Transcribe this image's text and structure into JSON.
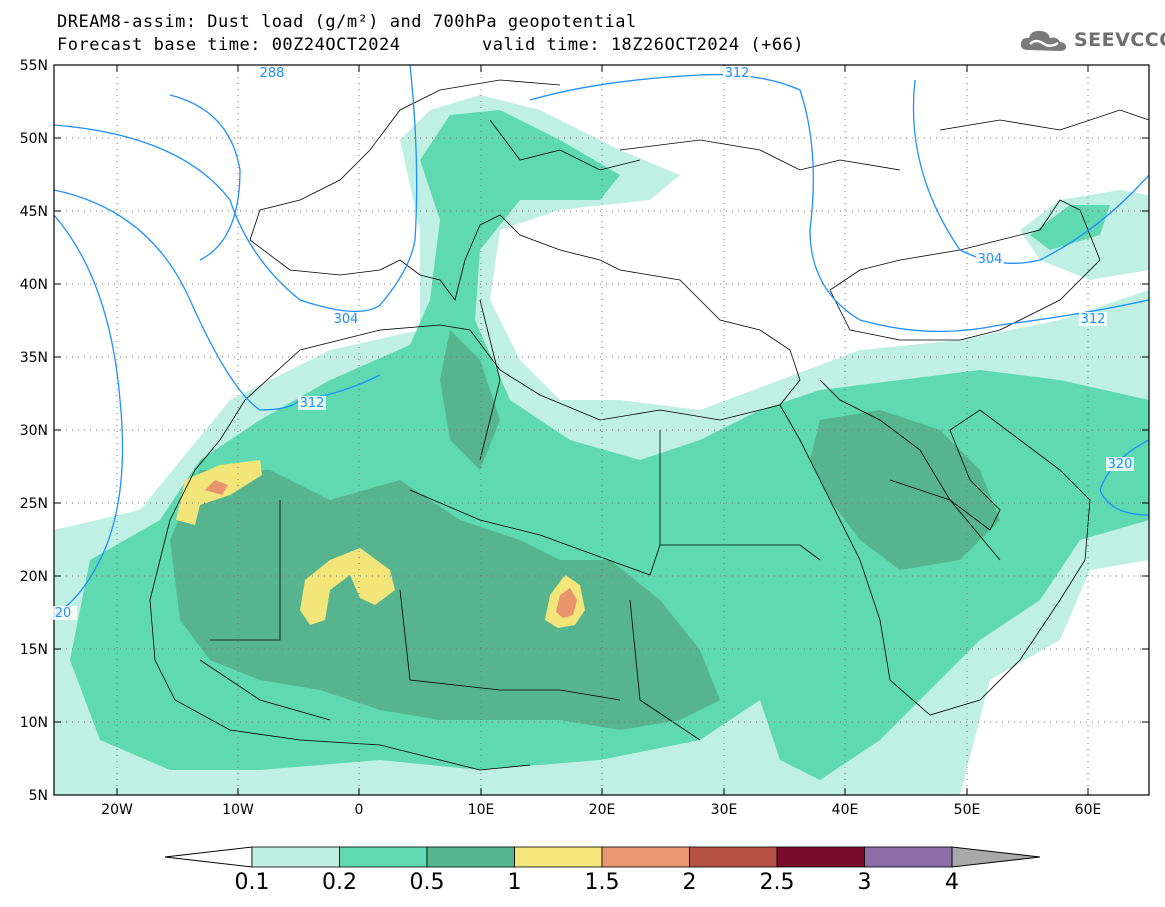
{
  "title": {
    "line1": "DREAM8-assim: Dust load (g/m²) and 700hPa geopotential",
    "line2_left": "Forecast base time: 00Z24OCT2024",
    "line2_right": "valid time: 18Z26OCT2024 (+66)"
  },
  "logo": {
    "text": "SEEVCCC",
    "icon": "cloud-icon"
  },
  "map": {
    "lon_ticks": [
      "20W",
      "10W",
      "0",
      "10E",
      "20E",
      "30E",
      "40E",
      "50E",
      "60E"
    ],
    "lat_ticks": [
      "55N",
      "50N",
      "45N",
      "40N",
      "35N",
      "30N",
      "25N",
      "20N",
      "15N",
      "10N",
      "5N"
    ],
    "contour_labels": [
      "288",
      "304",
      "312",
      "312",
      "304",
      "312",
      "320",
      "20"
    ],
    "colors": {
      "c01": "#bff0e3",
      "c02": "#5ed9b0",
      "c05": "#56b58f",
      "c1": "#f2e57a",
      "c15": "#e9946d",
      "c2": "#c75a4a",
      "geopotential": "#1e90ff"
    }
  },
  "colorbar": {
    "labels": [
      "0.1",
      "0.2",
      "0.5",
      "1",
      "1.5",
      "2",
      "2.5",
      "3",
      "4"
    ],
    "colors": [
      "#c0eee2",
      "#5ed9b0",
      "#55b68f",
      "#f3e77b",
      "#ea9870",
      "#b45343",
      "#7a0d2a",
      "#8c6ea6"
    ],
    "under_color": "#ffffff",
    "over_color": "#a9a9a9"
  }
}
